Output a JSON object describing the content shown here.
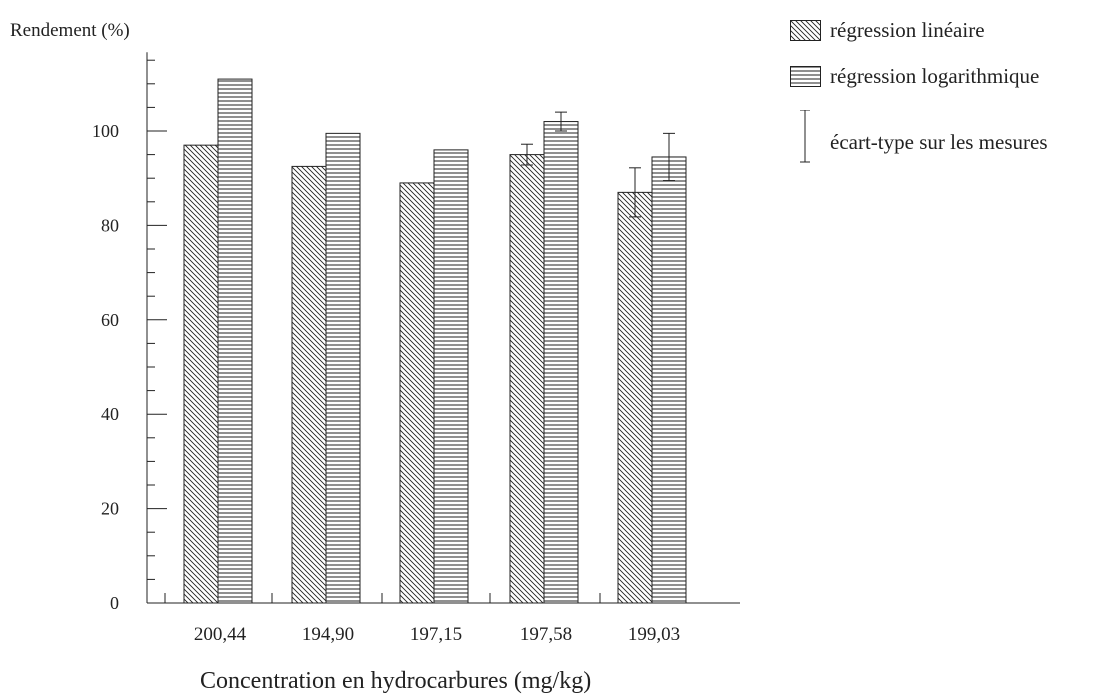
{
  "chart_data": {
    "type": "bar",
    "ylabel": "Rendement (%)",
    "xlabel": "Concentration en hydrocarbures (mg/kg)",
    "categories": [
      "200,44",
      "194,90",
      "197,15",
      "197,58",
      "199,03"
    ],
    "series": [
      {
        "name": "régression linéaire",
        "pattern": "diagonal",
        "values": [
          97,
          92.5,
          89,
          95,
          87
        ],
        "error": [
          null,
          null,
          null,
          2.2,
          5.2
        ]
      },
      {
        "name": "régression logarithmique",
        "pattern": "horizontal",
        "values": [
          111,
          99.5,
          96,
          102,
          94.5
        ],
        "error": [
          null,
          null,
          null,
          2,
          5
        ]
      }
    ],
    "error_legend": "écart-type sur les mesures",
    "ylim": [
      0,
      115
    ],
    "yticks": [
      0,
      20,
      40,
      60,
      80,
      100
    ],
    "grid": false,
    "legend_position": "top-right",
    "colors": {
      "ink": "#222222",
      "background": "#ffffff"
    }
  }
}
